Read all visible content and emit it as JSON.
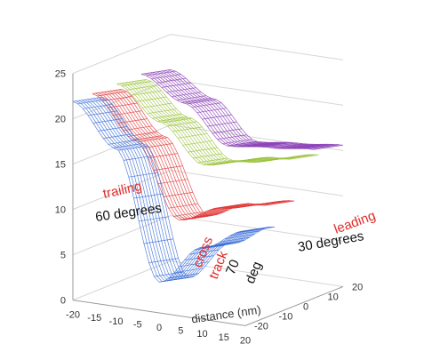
{
  "chart_data": {
    "type": "surface",
    "title": "",
    "x_axis": {
      "label": "distance (nm)",
      "ticks": [
        "-20",
        "-15",
        "-10",
        "-5",
        "0",
        "5",
        "10",
        "15",
        "20"
      ],
      "range": [
        -20,
        20
      ]
    },
    "y_axis": {
      "label": "",
      "ticks": [
        "-20",
        "-10",
        "0",
        "10",
        "20"
      ],
      "range": [
        -20,
        20
      ]
    },
    "z_axis": {
      "label": "",
      "ticks": [
        "0",
        "5",
        "10",
        "15",
        "20",
        "25"
      ],
      "range": [
        0,
        25
      ]
    },
    "grid": true,
    "surfaces": [
      {
        "description": "cross track 70 deg",
        "color": "#3c6fd8",
        "z_at_x": {
          "-20": 21.5,
          "-10": 17,
          "0": 3,
          "10": 7.5,
          "20": 10
        }
      },
      {
        "description": "trailing 60 degrees",
        "color": "#8a3fb5",
        "z_at_x": {
          "-20": 21.5,
          "-10": 19,
          "0": 15,
          "10": 15.5,
          "20": 16
        }
      },
      {
        "description": "leading 30 degrees",
        "color": "#e03a3a",
        "z_at_x": {
          "-20": 21.5,
          "-10": 17,
          "0": 9,
          "10": 11,
          "20": 12
        }
      },
      {
        "description": "",
        "color": "#9bc23c",
        "z_at_x": {
          "-20": 21.5,
          "-10": 18,
          "0": 14,
          "10": 15,
          "20": 16
        }
      }
    ],
    "annotations": {
      "trailing": "trailing",
      "trailing_angle": "60 degrees",
      "leading": "leading",
      "leading_angle": "30 degrees",
      "cross": "cross",
      "track": "track",
      "cross_num": "70",
      "cross_unit": "deg"
    }
  }
}
